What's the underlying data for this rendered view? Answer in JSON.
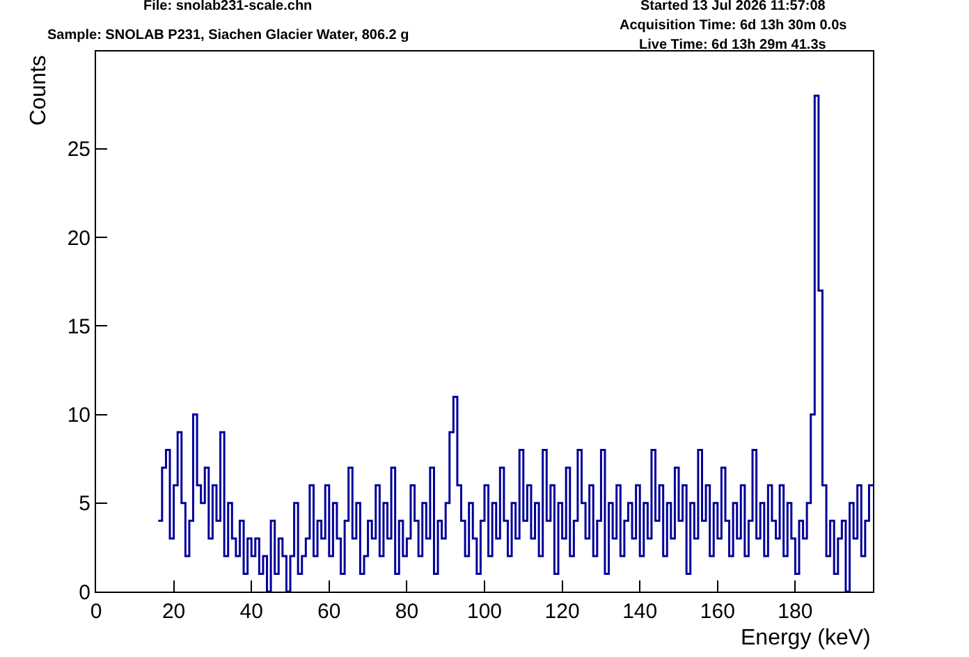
{
  "chart_data": {
    "type": "histogram",
    "annotations": [
      "File: snolab231-scale.chn",
      "Sample: SNOLAB P231, Siachen Glacier Water, 806.2 g",
      "Started 13 Jul 2026 11:57:08",
      "Acquisition Time: 6d 13h 30m 0.0s",
      "Live Time: 6d 13h 29m 41.3s"
    ],
    "xlabel": "Energy (keV)",
    "ylabel": "Counts",
    "color": "#000099",
    "bins": [
      16,
      17,
      18,
      19,
      20,
      21,
      22,
      23,
      24,
      25,
      26,
      27,
      28,
      29,
      30,
      31,
      32,
      33,
      34,
      35,
      36,
      37,
      38,
      39,
      40,
      41,
      42,
      43,
      44,
      45,
      46,
      47,
      48,
      49,
      50,
      51,
      52,
      53,
      54,
      55,
      56,
      57,
      58,
      59,
      60,
      61,
      62,
      63,
      64,
      65,
      66,
      67,
      68,
      69,
      70,
      71,
      72,
      73,
      74,
      75,
      76,
      77,
      78,
      79,
      80,
      81,
      82,
      83,
      84,
      85,
      86,
      87,
      88,
      89,
      90,
      91,
      92,
      93,
      94,
      95,
      96,
      97,
      98,
      99,
      100,
      101,
      102,
      103,
      104,
      105,
      106,
      107,
      108,
      109,
      110,
      111,
      112,
      113,
      114,
      115,
      116,
      117,
      118,
      119,
      120,
      121,
      122,
      123,
      124,
      125,
      126,
      127,
      128,
      129,
      130,
      131,
      132,
      133,
      134,
      135,
      136,
      137,
      138,
      139,
      140,
      141,
      142,
      143,
      144,
      145,
      146,
      147,
      148,
      149,
      150,
      151,
      152,
      153,
      154,
      155,
      156,
      157,
      158,
      159,
      160,
      161,
      162,
      163,
      164,
      165,
      166,
      167,
      168,
      169,
      170,
      171,
      172,
      173,
      174,
      175,
      176,
      177,
      178,
      179,
      180,
      181,
      182,
      183,
      184,
      185,
      186,
      187,
      188,
      189,
      190,
      191,
      192,
      193,
      194,
      195,
      196,
      197,
      198,
      199,
      200
    ],
    "values": [
      4,
      7,
      8,
      3,
      6,
      9,
      5,
      2,
      4,
      10,
      6,
      5,
      7,
      3,
      6,
      4,
      9,
      2,
      5,
      3,
      2,
      4,
      1,
      3,
      2,
      3,
      1,
      2,
      0,
      4,
      1,
      3,
      2,
      0,
      2,
      5,
      1,
      2,
      3,
      6,
      2,
      4,
      3,
      6,
      2,
      5,
      3,
      1,
      4,
      7,
      3,
      5,
      1,
      2,
      4,
      3,
      6,
      2,
      5,
      3,
      7,
      1,
      4,
      2,
      3,
      6,
      4,
      2,
      5,
      3,
      7,
      1,
      4,
      3,
      5,
      9,
      11,
      6,
      4,
      2,
      5,
      3,
      1,
      4,
      6,
      2,
      5,
      3,
      7,
      4,
      2,
      5,
      3,
      8,
      4,
      6,
      3,
      5,
      2,
      8,
      4,
      6,
      1,
      5,
      3,
      7,
      2,
      4,
      8,
      5,
      3,
      6,
      2,
      4,
      8,
      1,
      5,
      3,
      6,
      2,
      4,
      5,
      3,
      6,
      2,
      5,
      3,
      8,
      4,
      6,
      2,
      5,
      3,
      7,
      4,
      6,
      1,
      5,
      3,
      8,
      4,
      6,
      2,
      5,
      3,
      7,
      4,
      2,
      5,
      3,
      6,
      2,
      4,
      8,
      3,
      5,
      2,
      6,
      4,
      3,
      6,
      2,
      5,
      3,
      1,
      4,
      3,
      5,
      10,
      28,
      17,
      6,
      2,
      4,
      1,
      3,
      4,
      0,
      5,
      3,
      6,
      2,
      4,
      6
    ],
    "xlim": [
      0,
      200
    ],
    "xticks": [
      0,
      20,
      40,
      60,
      80,
      100,
      120,
      140,
      160,
      180
    ],
    "ylim": [
      0,
      30.5
    ],
    "yticks": [
      0,
      5,
      10,
      15,
      20,
      25
    ],
    "grid": false
  }
}
